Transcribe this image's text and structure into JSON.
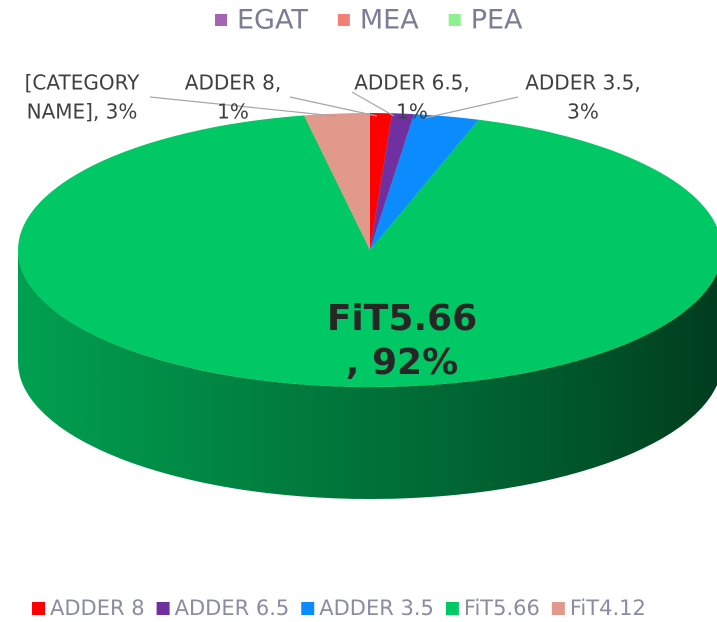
{
  "chart_data": {
    "type": "pie3d",
    "top_legend": [
      {
        "name": "EGAT",
        "color": "#a464b2"
      },
      {
        "name": "MEA",
        "color": "#f08078"
      },
      {
        "name": "PEA",
        "color": "#8ef08e"
      }
    ],
    "categories": [
      "ADDER 8",
      "ADDER 6.5",
      "ADDER 3.5",
      "FiT5.66",
      "FiT4.12"
    ],
    "values": [
      1,
      1,
      3,
      92,
      3
    ],
    "data_labels": [
      [
        "ADDER 8,",
        "1%"
      ],
      [
        "ADDER 6.5,",
        "1%"
      ],
      [
        "ADDER 3.5,",
        "3%"
      ],
      [
        "FiT5.66",
        ", 92%"
      ],
      [
        "[CATEGORY",
        "NAME], 3%"
      ]
    ],
    "colors": [
      "#ff0000",
      "#7030a0",
      "#0a8cff",
      "#00c864",
      "#e0998a"
    ]
  }
}
